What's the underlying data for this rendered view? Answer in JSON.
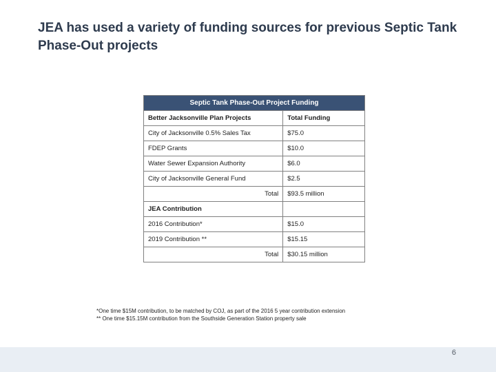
{
  "title": "JEA has used a variety of funding sources for previous Septic Tank Phase-Out projects",
  "table": {
    "banner": "Septic Tank Phase-Out Project Funding",
    "section1": {
      "col1": "Better Jacksonville Plan Projects",
      "col2": "Total Funding",
      "rows": [
        [
          "City of Jacksonville 0.5% Sales Tax",
          "$75.0"
        ],
        [
          "FDEP Grants",
          "$10.0"
        ],
        [
          "Water Sewer Expansion Authority",
          "$6.0"
        ],
        [
          "City of Jacksonville General Fund",
          "$2.5"
        ]
      ],
      "total_label": "Total",
      "total_value": "$93.5 million"
    },
    "section2": {
      "header": "JEA Contribution",
      "rows": [
        [
          "2016 Contribution*",
          "$15.0"
        ],
        [
          "2019 Contribution **",
          "$15.15"
        ]
      ],
      "total_label": "Total",
      "total_value": "$30.15 million"
    }
  },
  "footnotes": {
    "line1": "*One time $15M contribution, to be matched by COJ, as part of the 2016 5 year contribution extension",
    "line2": "** One time $15.15M contribution from the Southside Generation Station property sale"
  },
  "page_number": "6",
  "colors": {
    "title_color": "#2e3b4e",
    "banner_bg": "#3a5275",
    "banner_text": "#ffffff",
    "border": "#808080",
    "bottom_bar": "#e9eef4"
  }
}
